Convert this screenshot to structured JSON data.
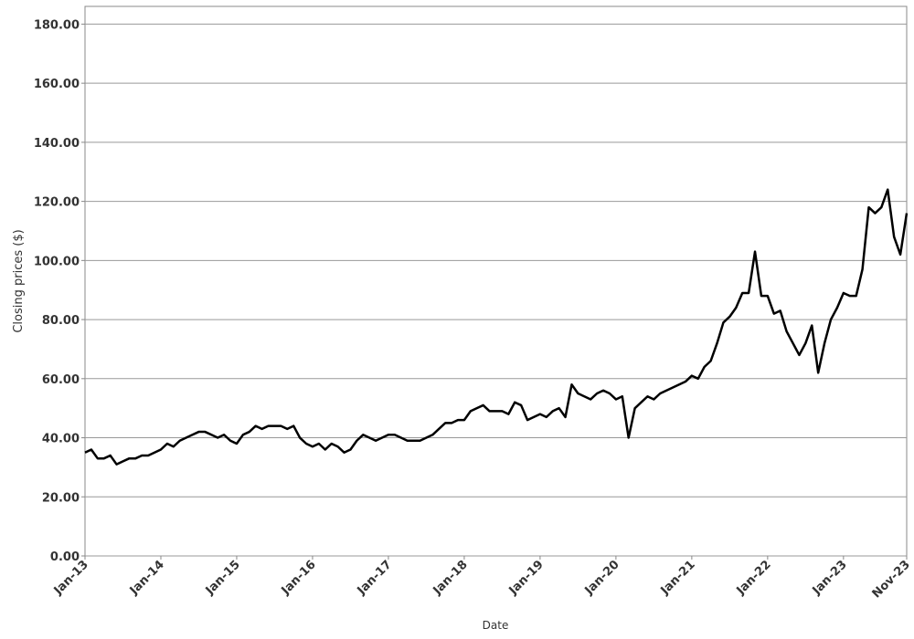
{
  "chart_data": {
    "type": "line",
    "x_label": "Date",
    "y_label": "Closing prices ($)",
    "xlim": [
      "2013-01",
      "2023-11"
    ],
    "xticks": [
      {
        "value": "2013-01",
        "label": "Jan-13"
      },
      {
        "value": "2014-01",
        "label": "Jan-14"
      },
      {
        "value": "2015-01",
        "label": "Jan-15"
      },
      {
        "value": "2016-01",
        "label": "Jan-16"
      },
      {
        "value": "2017-01",
        "label": "Jan-17"
      },
      {
        "value": "2018-01",
        "label": "Jan-18"
      },
      {
        "value": "2019-01",
        "label": "Jan-19"
      },
      {
        "value": "2020-01",
        "label": "Jan-20"
      },
      {
        "value": "2021-01",
        "label": "Jan-21"
      },
      {
        "value": "2022-01",
        "label": "Jan-22"
      },
      {
        "value": "2023-01",
        "label": "Jan-23"
      },
      {
        "value": "2023-11",
        "label": "Nov-23"
      }
    ],
    "ylim": [
      0,
      186
    ],
    "yticks": [
      {
        "value": 0,
        "label": "0.00"
      },
      {
        "value": 20,
        "label": "20.00"
      },
      {
        "value": 40,
        "label": "40.00"
      },
      {
        "value": 60,
        "label": "60.00"
      },
      {
        "value": 80,
        "label": "80.00"
      },
      {
        "value": 100,
        "label": "100.00"
      },
      {
        "value": 120,
        "label": "120.00"
      },
      {
        "value": 140,
        "label": "140.00"
      },
      {
        "value": 160,
        "label": "160.00"
      },
      {
        "value": 180,
        "label": "180.00"
      }
    ],
    "grid": true,
    "color": "#000000",
    "x": [
      "2013-01",
      "2013-02",
      "2013-03",
      "2013-04",
      "2013-05",
      "2013-06",
      "2013-07",
      "2013-08",
      "2013-09",
      "2013-10",
      "2013-11",
      "2013-12",
      "2014-01",
      "2014-02",
      "2014-03",
      "2014-04",
      "2014-05",
      "2014-06",
      "2014-07",
      "2014-08",
      "2014-09",
      "2014-10",
      "2014-11",
      "2014-12",
      "2015-01",
      "2015-02",
      "2015-03",
      "2015-04",
      "2015-05",
      "2015-06",
      "2015-07",
      "2015-08",
      "2015-09",
      "2015-10",
      "2015-11",
      "2015-12",
      "2016-01",
      "2016-02",
      "2016-03",
      "2016-04",
      "2016-05",
      "2016-06",
      "2016-07",
      "2016-08",
      "2016-09",
      "2016-10",
      "2016-11",
      "2016-12",
      "2017-01",
      "2017-02",
      "2017-03",
      "2017-04",
      "2017-05",
      "2017-06",
      "2017-07",
      "2017-08",
      "2017-09",
      "2017-10",
      "2017-11",
      "2017-12",
      "2018-01",
      "2018-02",
      "2018-03",
      "2018-04",
      "2018-05",
      "2018-06",
      "2018-07",
      "2018-08",
      "2018-09",
      "2018-10",
      "2018-11",
      "2018-12",
      "2019-01",
      "2019-02",
      "2019-03",
      "2019-04",
      "2019-05",
      "2019-06",
      "2019-07",
      "2019-08",
      "2019-09",
      "2019-10",
      "2019-11",
      "2019-12",
      "2020-01",
      "2020-02",
      "2020-03",
      "2020-04",
      "2020-05",
      "2020-06",
      "2020-07",
      "2020-08",
      "2020-09",
      "2020-10",
      "2020-11",
      "2020-12",
      "2021-01",
      "2021-02",
      "2021-03",
      "2021-04",
      "2021-05",
      "2021-06",
      "2021-07",
      "2021-08",
      "2021-09",
      "2021-10",
      "2021-11",
      "2021-12",
      "2022-01",
      "2022-02",
      "2022-03",
      "2022-04",
      "2022-05",
      "2022-06",
      "2022-07",
      "2022-08",
      "2022-09",
      "2022-10",
      "2022-11",
      "2022-12",
      "2023-01",
      "2023-02",
      "2023-03",
      "2023-04",
      "2023-05",
      "2023-06",
      "2023-07",
      "2023-08",
      "2023-09",
      "2023-10",
      "2023-11"
    ],
    "values": [
      35,
      36,
      33,
      33,
      34,
      31,
      32,
      33,
      33,
      34,
      34,
      35,
      36,
      38,
      37,
      39,
      40,
      41,
      42,
      42,
      41,
      40,
      41,
      39,
      38,
      41,
      42,
      44,
      43,
      44,
      44,
      44,
      43,
      44,
      40,
      38,
      37,
      38,
      36,
      38,
      37,
      35,
      36,
      39,
      41,
      40,
      39,
      40,
      41,
      41,
      40,
      39,
      39,
      39,
      40,
      41,
      43,
      45,
      45,
      46,
      46,
      49,
      50,
      51,
      49,
      49,
      49,
      48,
      52,
      51,
      46,
      47,
      48,
      47,
      49,
      50,
      47,
      58,
      55,
      54,
      53,
      55,
      56,
      55,
      53,
      54,
      40,
      50,
      52,
      54,
      53,
      55,
      56,
      57,
      58,
      59,
      61,
      60,
      64,
      66,
      72,
      79,
      81,
      84,
      89,
      89,
      103,
      88,
      88,
      82,
      83,
      76,
      72,
      68,
      72,
      78,
      62,
      72,
      80,
      84,
      89,
      88,
      88,
      97,
      118,
      116,
      118,
      124,
      108,
      102,
      116
    ]
  }
}
